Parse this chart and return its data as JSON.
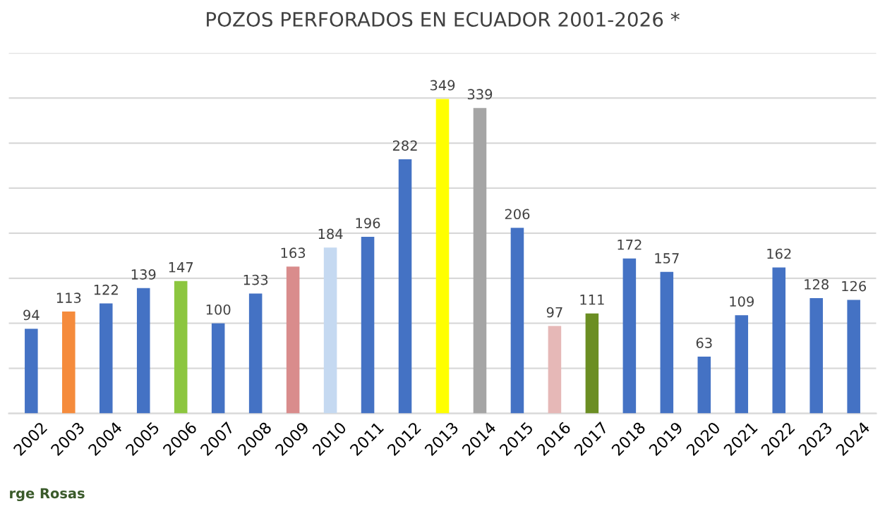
{
  "chart_data": {
    "type": "bar",
    "title": "POZOS PERFORADOS EN ECUADOR 2001-2026 *",
    "categories": [
      "2002",
      "2003",
      "2004",
      "2005",
      "2006",
      "2007",
      "2008",
      "2009",
      "2010",
      "2011",
      "2012",
      "2013",
      "2014",
      "2015",
      "2016",
      "2017",
      "2018",
      "2019",
      "2020",
      "2021",
      "2022",
      "2023",
      "2024"
    ],
    "values": [
      94,
      113,
      122,
      139,
      147,
      100,
      133,
      163,
      184,
      196,
      282,
      349,
      339,
      206,
      97,
      111,
      172,
      157,
      63,
      109,
      162,
      128,
      126
    ],
    "colors": [
      "#4472c4",
      "#f58b3c",
      "#4472c4",
      "#4472c4",
      "#8cc63f",
      "#4472c4",
      "#4472c4",
      "#d98c8c",
      "#c5d9f1",
      "#4472c4",
      "#4472c4",
      "#ffff00",
      "#a5a5a5",
      "#4472c4",
      "#e6b8b7",
      "#6b8e23",
      "#4472c4",
      "#4472c4",
      "#4472c4",
      "#4472c4",
      "#4472c4",
      "#4472c4",
      "#4472c4"
    ],
    "ylim": [
      0,
      400
    ],
    "yticks": [
      {
        "value": 0,
        "label": null
      },
      {
        "value": 50,
        "label": null
      },
      {
        "value": 100,
        "label": null
      },
      {
        "value": 150,
        "label": null
      },
      {
        "value": 200,
        "label": null
      },
      {
        "value": 250,
        "label": null
      },
      {
        "value": 300,
        "label": null
      },
      {
        "value": 350,
        "label": null
      },
      {
        "value": 400,
        "label": null
      }
    ],
    "tick_labels": "x",
    "grid": "y",
    "data_labels": true,
    "annotations": [
      "rge Rosas"
    ]
  }
}
